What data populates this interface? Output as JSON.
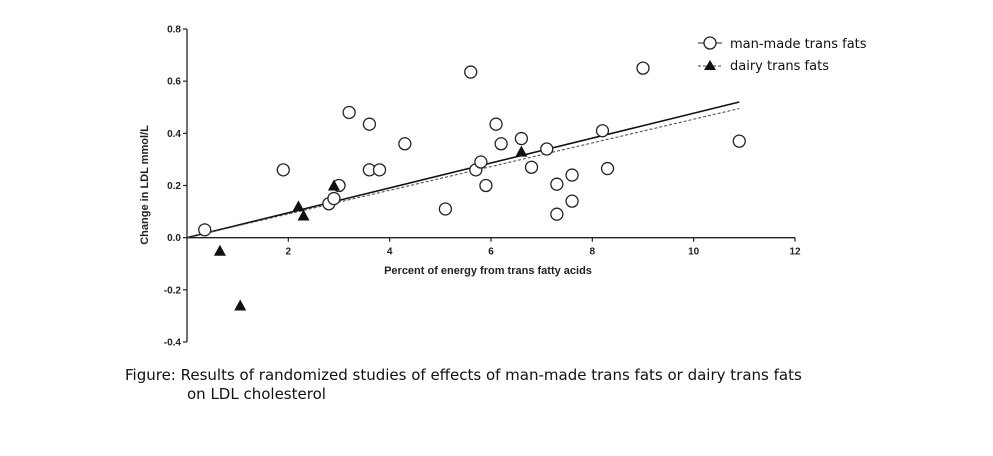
{
  "chart_data": {
    "type": "scatter",
    "title": "",
    "xlabel": "Percent of energy from trans fatty acids",
    "ylabel": "Change in LDL mmol/L",
    "xlim": [
      0,
      12
    ],
    "ylim": [
      -0.4,
      0.8
    ],
    "x_ticks": [
      2,
      4,
      6,
      8,
      10,
      12
    ],
    "y_ticks": [
      -0.4,
      -0.2,
      0.0,
      0.2,
      0.4,
      0.6,
      0.8
    ],
    "x_tick_labels": [
      "2",
      "4",
      "6",
      "8",
      "10",
      "12"
    ],
    "y_tick_labels": [
      "-0.4",
      "-0.2",
      "0.0",
      "0.2",
      "0.4",
      "0.6",
      "0.8"
    ],
    "legend_position": "top-right",
    "series": [
      {
        "name": "man-made trans fats",
        "marker": "open-circle",
        "points": [
          {
            "x": 0.35,
            "y": 0.03
          },
          {
            "x": 1.9,
            "y": 0.26
          },
          {
            "x": 2.8,
            "y": 0.13
          },
          {
            "x": 2.9,
            "y": 0.15
          },
          {
            "x": 3.0,
            "y": 0.2
          },
          {
            "x": 3.2,
            "y": 0.48
          },
          {
            "x": 3.6,
            "y": 0.435
          },
          {
            "x": 3.6,
            "y": 0.26
          },
          {
            "x": 3.8,
            "y": 0.26
          },
          {
            "x": 4.3,
            "y": 0.36
          },
          {
            "x": 5.1,
            "y": 0.11
          },
          {
            "x": 5.6,
            "y": 0.635
          },
          {
            "x": 5.7,
            "y": 0.26
          },
          {
            "x": 5.8,
            "y": 0.29
          },
          {
            "x": 5.9,
            "y": 0.2
          },
          {
            "x": 6.1,
            "y": 0.435
          },
          {
            "x": 6.2,
            "y": 0.36
          },
          {
            "x": 6.6,
            "y": 0.38
          },
          {
            "x": 6.8,
            "y": 0.27
          },
          {
            "x": 7.1,
            "y": 0.34
          },
          {
            "x": 7.3,
            "y": 0.205
          },
          {
            "x": 7.3,
            "y": 0.09
          },
          {
            "x": 7.6,
            "y": 0.24
          },
          {
            "x": 7.6,
            "y": 0.14
          },
          {
            "x": 8.2,
            "y": 0.41
          },
          {
            "x": 8.3,
            "y": 0.265
          },
          {
            "x": 9.0,
            "y": 0.65
          },
          {
            "x": 10.9,
            "y": 0.37
          }
        ]
      },
      {
        "name": "dairy trans fats",
        "marker": "filled-triangle",
        "points": [
          {
            "x": 0.65,
            "y": -0.05
          },
          {
            "x": 1.05,
            "y": -0.26
          },
          {
            "x": 2.2,
            "y": 0.12
          },
          {
            "x": 2.3,
            "y": 0.085
          },
          {
            "x": 2.9,
            "y": 0.2
          },
          {
            "x": 6.6,
            "y": 0.33
          }
        ]
      }
    ],
    "regression_lines": [
      {
        "name": "man-made trans fats",
        "style": "solid",
        "x": [
          0,
          10.9
        ],
        "y": [
          0,
          0.52
        ]
      },
      {
        "name": "dairy trans fats",
        "style": "dashed",
        "x": [
          0,
          10.9
        ],
        "y": [
          0,
          0.495
        ]
      }
    ]
  },
  "caption": {
    "line1": "Figure: Results of randomized studies of effects of man-made trans fats or dairy trans fats",
    "line2": "on LDL cholesterol"
  },
  "colors": {
    "axis": "#222222",
    "marker_stroke": "#222222",
    "marker_fill_open": "#ffffff",
    "marker_fill_solid": "#111111"
  }
}
